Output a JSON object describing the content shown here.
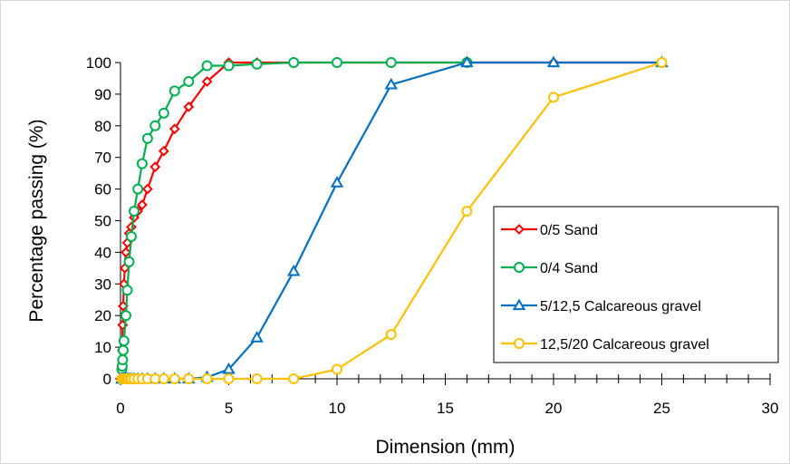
{
  "chart_data": {
    "type": "line",
    "title": "",
    "xlabel": "Dimension (mm)",
    "ylabel": "Percentage passing (%)",
    "xlim": [
      0,
      30
    ],
    "ylim": [
      0,
      100
    ],
    "xticks": [
      0,
      5,
      10,
      15,
      20,
      25,
      30
    ],
    "yticks": [
      0,
      10,
      20,
      30,
      40,
      50,
      60,
      70,
      80,
      90,
      100
    ],
    "x_minor_step": 1,
    "grid": false,
    "legend_position": "bottom-right",
    "series": [
      {
        "name": "0/5 Sand",
        "color": "#ff0000",
        "marker": "diamond",
        "points": [
          [
            0,
            0
          ],
          [
            0.06,
            4
          ],
          [
            0.08,
            9
          ],
          [
            0.1,
            17
          ],
          [
            0.125,
            23
          ],
          [
            0.16,
            30
          ],
          [
            0.2,
            35
          ],
          [
            0.25,
            40
          ],
          [
            0.315,
            43
          ],
          [
            0.4,
            46
          ],
          [
            0.5,
            48
          ],
          [
            0.63,
            51
          ],
          [
            0.8,
            53
          ],
          [
            1,
            55
          ],
          [
            1.25,
            60
          ],
          [
            1.6,
            67
          ],
          [
            2,
            72
          ],
          [
            2.5,
            79
          ],
          [
            3.15,
            86
          ],
          [
            4,
            94
          ],
          [
            5,
            100
          ],
          [
            6.3,
            100
          ],
          [
            8,
            100
          ],
          [
            10,
            100
          ],
          [
            12.5,
            100
          ],
          [
            16,
            100
          ],
          [
            20,
            100
          ],
          [
            25,
            100
          ]
        ]
      },
      {
        "name": "0/4 Sand",
        "color": "#00b050",
        "marker": "circle",
        "points": [
          [
            0.063,
            3
          ],
          [
            0.08,
            4
          ],
          [
            0.1,
            6
          ],
          [
            0.125,
            9
          ],
          [
            0.16,
            12
          ],
          [
            0.25,
            20
          ],
          [
            0.315,
            28
          ],
          [
            0.4,
            37
          ],
          [
            0.5,
            45
          ],
          [
            0.63,
            53
          ],
          [
            0.8,
            60
          ],
          [
            1,
            68
          ],
          [
            1.25,
            76
          ],
          [
            1.6,
            80
          ],
          [
            2,
            84
          ],
          [
            2.5,
            91
          ],
          [
            3.15,
            94
          ],
          [
            4,
            99
          ],
          [
            5,
            99
          ],
          [
            6.3,
            99.5
          ],
          [
            8,
            100
          ],
          [
            10,
            100
          ],
          [
            12.5,
            100
          ],
          [
            16,
            100
          ]
        ]
      },
      {
        "name": "5/12,5 Calcareous gravel",
        "color": "#0070c0",
        "marker": "triangle",
        "points": [
          [
            0.063,
            0
          ],
          [
            0.08,
            0
          ],
          [
            0.1,
            0
          ],
          [
            0.125,
            0
          ],
          [
            0.16,
            0
          ],
          [
            0.2,
            0
          ],
          [
            0.25,
            0
          ],
          [
            0.315,
            0
          ],
          [
            0.4,
            0
          ],
          [
            0.5,
            0
          ],
          [
            0.63,
            0
          ],
          [
            0.8,
            0
          ],
          [
            1,
            0
          ],
          [
            1.25,
            0
          ],
          [
            1.6,
            0
          ],
          [
            2,
            0
          ],
          [
            2.5,
            0
          ],
          [
            3.15,
            0
          ],
          [
            4,
            0.5
          ],
          [
            5,
            3
          ],
          [
            6.3,
            13
          ],
          [
            8,
            34
          ],
          [
            10,
            62
          ],
          [
            12.5,
            93
          ],
          [
            16,
            100
          ],
          [
            20,
            100
          ],
          [
            25,
            100
          ]
        ]
      },
      {
        "name": "12,5/20 Calcareous gravel",
        "color": "#ffc000",
        "marker": "circle",
        "points": [
          [
            0.063,
            0
          ],
          [
            0.08,
            0
          ],
          [
            0.1,
            0
          ],
          [
            0.125,
            0
          ],
          [
            0.16,
            0
          ],
          [
            0.2,
            0
          ],
          [
            0.25,
            0
          ],
          [
            0.315,
            0
          ],
          [
            0.4,
            0
          ],
          [
            0.5,
            0
          ],
          [
            0.63,
            0
          ],
          [
            0.8,
            0
          ],
          [
            1,
            0
          ],
          [
            1.25,
            0
          ],
          [
            1.6,
            0
          ],
          [
            2,
            0
          ],
          [
            2.5,
            0
          ],
          [
            3.15,
            0
          ],
          [
            4,
            0
          ],
          [
            5,
            0
          ],
          [
            6.3,
            0
          ],
          [
            8,
            0
          ],
          [
            10,
            3
          ],
          [
            12.5,
            14
          ],
          [
            16,
            53
          ],
          [
            20,
            89
          ],
          [
            25,
            100
          ]
        ]
      }
    ]
  }
}
